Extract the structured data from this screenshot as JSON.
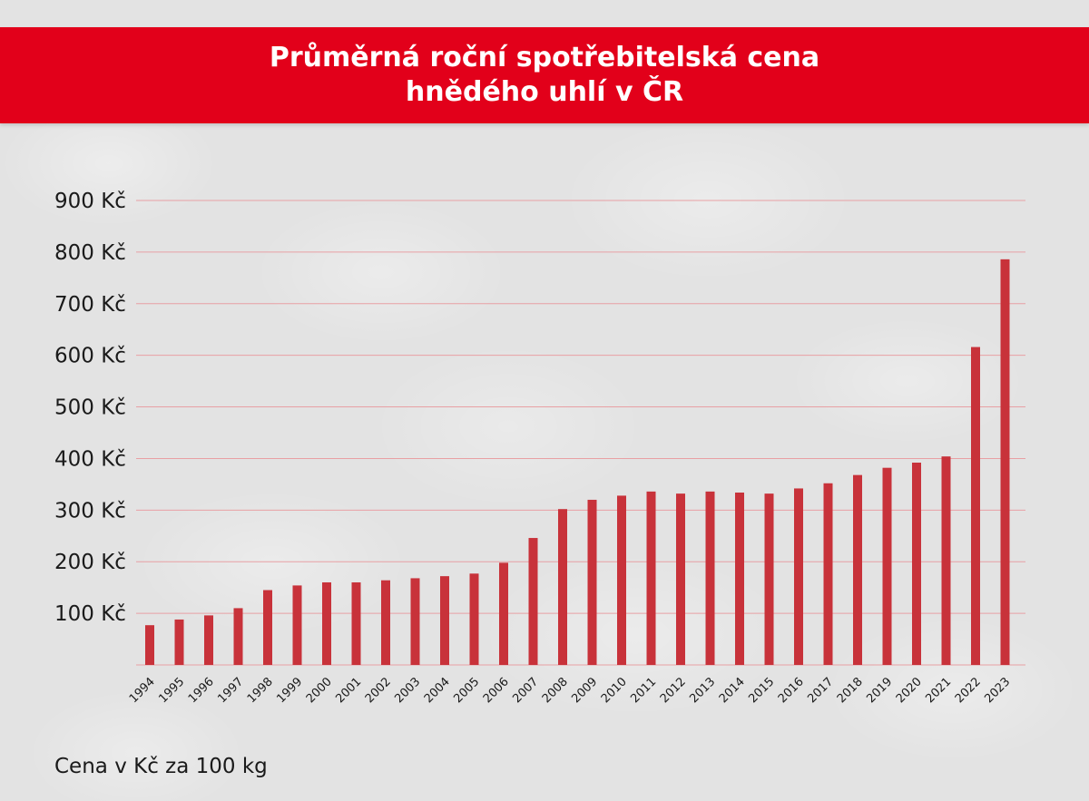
{
  "header": {
    "title_line1": "Průměrná roční spotřebitelská cena",
    "title_line2": "hnědého uhlí v ČR"
  },
  "footnote": "Cena v Kč za 100 kg",
  "colors": {
    "banner": "#e2001a",
    "bar": "#c8323a",
    "grid": "#e8a0a4",
    "text": "#1a1a1a"
  },
  "chart_data": {
    "type": "bar",
    "title": "Průměrná roční spotřebitelská cena hnědého uhlí v ČR",
    "categories": [
      "1994",
      "1995",
      "1996",
      "1997",
      "1998",
      "1999",
      "2000",
      "2001",
      "2002",
      "2003",
      "2004",
      "2005",
      "2006",
      "2007",
      "2008",
      "2009",
      "2010",
      "2011",
      "2012",
      "2013",
      "2014",
      "2015",
      "2016",
      "2017",
      "2018",
      "2019",
      "2020",
      "2021",
      "2022",
      "2023"
    ],
    "values": [
      77,
      88,
      96,
      110,
      145,
      154,
      160,
      160,
      164,
      168,
      172,
      177,
      198,
      246,
      302,
      320,
      328,
      336,
      332,
      336,
      334,
      332,
      342,
      352,
      368,
      382,
      392,
      404,
      616,
      786
    ],
    "ylim": [
      0,
      900
    ],
    "yticks": [
      100,
      200,
      300,
      400,
      500,
      600,
      700,
      800,
      900
    ],
    "ytick_labels": [
      "100 Kč",
      "200 Kč",
      "300 Kč",
      "400 Kč",
      "500 Kč",
      "600 Kč",
      "700 Kč",
      "800 Kč",
      "900 Kč"
    ],
    "grid": true,
    "legend": "none"
  }
}
